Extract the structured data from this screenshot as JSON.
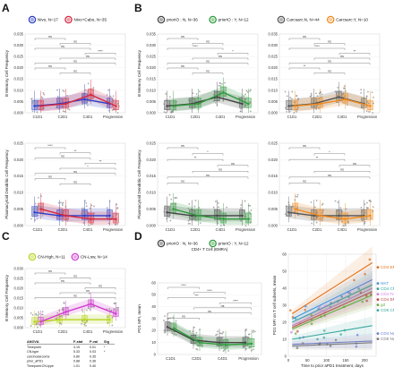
{
  "figure": {
    "panel_letters": [
      "A",
      "B",
      "C",
      "D"
    ],
    "ns_label": "ns",
    "colors": {
      "nivo": "#2b3cc7",
      "nivo_cabo": "#d7263d",
      "prior_no": "#444444",
      "prior_yes": "#2e9b3c",
      "carc_no": "#555555",
      "carc_yes": "#f08a1c",
      "cn_high": "#b7d31c",
      "cn_low": "#d13bd0"
    },
    "d_left": {
      "title": "CD4+ T Cell (EMRA)"
    },
    "anova": {
      "header": [
        "ANOVA",
        "F-stat",
        "P-val",
        "Sig"
      ],
      "rows": [
        [
          "Timepoint",
          "4.15",
          "0.01",
          "*"
        ],
        [
          "CN-type",
          "5.33",
          "0.03",
          "*"
        ],
        [
          "carcinosarcoma",
          "0.80",
          "0.35",
          ""
        ],
        [
          "prior_aPD1",
          "0.88",
          "0.36",
          ""
        ],
        [
          "Timepoint:CN-type",
          "1.01",
          "0.40",
          ""
        ]
      ]
    }
  },
  "chart_data": [
    {
      "id": "A-top",
      "type": "line",
      "ylabel": "B Memory Cell Frequency",
      "categories": [
        "C1D1",
        "C2D1",
        "C4D1",
        "Progression"
      ],
      "ylim": [
        0,
        0.035
      ],
      "yticks": [
        "0.000",
        "0.005",
        "0.010",
        "0.015",
        "0.020",
        "0.025",
        "0.030",
        "0.035"
      ],
      "legend": [
        {
          "label": "Nivo, N=17",
          "color": "#2b3cc7"
        },
        {
          "label": "Nivo+Cabo, N=35",
          "color": "#d7263d"
        }
      ],
      "series": [
        {
          "name": "Nivo",
          "values": [
            0.003,
            0.004,
            0.006,
            0.004
          ]
        },
        {
          "name": "Nivo+Cabo",
          "values": [
            0.003,
            0.004,
            0.008,
            0.003
          ]
        }
      ],
      "brackets": [
        "ns",
        "ns",
        "ns",
        "****",
        "ns",
        "ns",
        "ns",
        "ns"
      ]
    },
    {
      "id": "A-bottom",
      "type": "line",
      "ylabel": "Plasmacytoid Dendritic Cell Frequency",
      "categories": [
        "C1D1",
        "C2D1",
        "C4D1",
        "Progression"
      ],
      "ylim": [
        0,
        0.025
      ],
      "yticks": [
        "0.000",
        "0.005",
        "0.010",
        "0.015",
        "0.020",
        "0.025"
      ],
      "series": [
        {
          "name": "Nivo",
          "values": [
            0.004,
            0.003,
            0.003,
            0.003
          ]
        },
        {
          "name": "Nivo+Cabo",
          "values": [
            0.005,
            0.003,
            0.002,
            0.002
          ]
        }
      ],
      "brackets": [
        "****",
        "**",
        "ns",
        "**",
        "*",
        "ns",
        "ns",
        "ns"
      ]
    },
    {
      "id": "B1-top",
      "type": "line",
      "ylabel": "B Memory Cell Frequency",
      "categories": [
        "C1D1",
        "C2D1",
        "C4D1",
        "Progression"
      ],
      "ylim": [
        0,
        0.035
      ],
      "yticks": [
        "0.000",
        "0.005",
        "0.010",
        "0.015",
        "0.020",
        "0.025",
        "0.030",
        "0.035"
      ],
      "legend": [
        {
          "label": "priorIO : N, N=36",
          "color": "#444444"
        },
        {
          "label": "priorIO : Y, N=12",
          "color": "#2e9b3c"
        }
      ],
      "series": [
        {
          "name": "priorIO : N",
          "values": [
            0.003,
            0.004,
            0.007,
            0.004
          ]
        },
        {
          "name": "priorIO : Y",
          "values": [
            0.003,
            0.004,
            0.009,
            0.004
          ]
        }
      ],
      "brackets": [
        "ns",
        "ns",
        "****",
        "*",
        "ns",
        "ns",
        "ns",
        "ns"
      ]
    },
    {
      "id": "B1-bottom",
      "type": "line",
      "ylabel": "Plasmacytoid Dendritic Cell Frequency",
      "categories": [
        "C1D1",
        "C2D1",
        "C4D1",
        "Progression"
      ],
      "ylim": [
        0,
        0.025
      ],
      "yticks": [
        "0.000",
        "0.005",
        "0.010",
        "0.015",
        "0.020",
        "0.025"
      ],
      "series": [
        {
          "name": "priorIO : N",
          "values": [
            0.004,
            0.003,
            0.003,
            0.003
          ]
        },
        {
          "name": "priorIO : Y",
          "values": [
            0.005,
            0.003,
            0.002,
            0.002
          ]
        }
      ],
      "brackets": [
        "ns",
        "*",
        "**",
        "ns",
        "ns",
        "ns",
        "ns"
      ]
    },
    {
      "id": "B2-top",
      "type": "line",
      "categories": [
        "C1D1",
        "C2D1",
        "C4D1",
        "Progression"
      ],
      "ylim": [
        0,
        0.035
      ],
      "yticks": [
        "0.000",
        "0.005",
        "0.010",
        "0.015",
        "0.020",
        "0.025",
        "0.030",
        "0.035"
      ],
      "legend": [
        {
          "label": "Carcsarc:N, N=44",
          "color": "#555555"
        },
        {
          "label": "Carcsarc:Y, N=10",
          "color": "#f08a1c"
        }
      ],
      "series": [
        {
          "name": "Carcsarc:N",
          "values": [
            0.003,
            0.004,
            0.007,
            0.004
          ]
        },
        {
          "name": "Carcsarc:Y",
          "values": [
            0.003,
            0.004,
            0.006,
            0.003
          ]
        }
      ],
      "brackets": [
        "ns",
        "ns",
        "****",
        "**",
        "ns",
        "ns",
        "**",
        "ns"
      ]
    },
    {
      "id": "B2-bottom",
      "type": "line",
      "categories": [
        "C1D1",
        "C2D1",
        "C4D1",
        "Progression"
      ],
      "ylim": [
        0,
        0.025
      ],
      "yticks": [
        "0.000",
        "0.005",
        "0.010",
        "0.015",
        "0.020",
        "0.025"
      ],
      "series": [
        {
          "name": "Carcsarc:N",
          "values": [
            0.004,
            0.003,
            0.003,
            0.003
          ]
        },
        {
          "name": "Carcsarc:Y",
          "values": [
            0.005,
            0.003,
            0.002,
            0.003
          ]
        }
      ],
      "brackets": [
        "ns",
        "*",
        "**",
        "ns",
        "ns",
        "ns",
        "ns"
      ]
    },
    {
      "id": "C",
      "type": "line",
      "ylabel": "B Memory Cell Frequency",
      "categories": [
        "C1D1",
        "C2D1",
        "C4D1",
        "Progression"
      ],
      "ylim": [
        0,
        0.03
      ],
      "yticks": [
        "0.000",
        "0.005",
        "0.010",
        "0.015",
        "0.020",
        "0.025",
        "0.030"
      ],
      "legend": [
        {
          "label": "CN-High, N=11",
          "color": "#b7d31c"
        },
        {
          "label": "CN-Low, N=14",
          "color": "#d13bd0"
        }
      ],
      "series": [
        {
          "name": "CN-High",
          "values": [
            0.003,
            0.004,
            0.004,
            0.004
          ]
        },
        {
          "name": "CN-Low",
          "values": [
            0.003,
            0.008,
            0.012,
            0.007
          ]
        }
      ],
      "brackets": [
        "ns",
        "ns",
        "ns",
        "ns",
        "ns",
        "ns"
      ]
    },
    {
      "id": "D-left",
      "type": "line",
      "ylabel": "PD1 MFI, mean",
      "categories": [
        "C1D1",
        "C2D1",
        "C4D1",
        "Progression"
      ],
      "ylim": [
        0,
        60
      ],
      "yticks": [
        "0",
        "10",
        "20",
        "30",
        "40",
        "50",
        "60"
      ],
      "legend": [
        {
          "label": "priorIO : N, N=36",
          "color": "#444444"
        },
        {
          "label": "priorIO : Y, N=12",
          "color": "#2e9b3c"
        }
      ],
      "series": [
        {
          "name": "priorIO : N",
          "values": [
            23,
            12,
            10,
            10
          ]
        },
        {
          "name": "priorIO : Y",
          "values": [
            22,
            10,
            8,
            9
          ]
        }
      ],
      "brackets": [
        "****",
        "****",
        "***",
        "****",
        "ns",
        "ns",
        "ns"
      ]
    },
    {
      "id": "D-right",
      "type": "scatter",
      "ylabel": "PD1 MFI on T cell subsets, mean",
      "xlabel": "Time to prior aPD1 treatment, days",
      "xticks": [
        "0",
        "50",
        "100",
        "150",
        "200"
      ],
      "yticks": [
        "0",
        "10",
        "20",
        "30",
        "40",
        "50",
        "60"
      ],
      "xlim": [
        0,
        230
      ],
      "ylim": [
        0,
        60
      ],
      "series": [
        {
          "name": "CD4 EM",
          "color": "#e0701a",
          "values": [
            [
              10,
              25
            ],
            [
              220,
              55
            ]
          ]
        },
        {
          "name": "NKT",
          "color": "#4b8fd6",
          "values": [
            [
              10,
              22
            ],
            [
              220,
              45
            ]
          ]
        },
        {
          "name": "CD4 CM",
          "color": "#2ca6a0",
          "values": [
            [
              10,
              20
            ],
            [
              220,
              42
            ]
          ]
        },
        {
          "name": "CD4 Treg",
          "color": "#d07fe0",
          "values": [
            [
              10,
              18
            ],
            [
              220,
              40
            ]
          ]
        },
        {
          "name": "CD4 EMRA",
          "color": "#c04a4a",
          "values": [
            [
              10,
              17
            ],
            [
              220,
              38
            ]
          ]
        },
        {
          "name": "gd",
          "color": "#6aaa3a",
          "values": [
            [
              10,
              16
            ],
            [
              220,
              36
            ]
          ]
        },
        {
          "name": "CD8 CM",
          "color": "#3aa8a0",
          "values": [
            [
              10,
              10
            ],
            [
              220,
              18
            ]
          ]
        },
        {
          "name": "CD4 Naive",
          "color": "#6c7fd0",
          "values": [
            [
              10,
              7
            ],
            [
              220,
              9
            ]
          ]
        },
        {
          "name": "CD8 Naive",
          "color": "#7a7a7a",
          "values": [
            [
              10,
              6
            ],
            [
              220,
              8
            ]
          ]
        }
      ]
    }
  ]
}
